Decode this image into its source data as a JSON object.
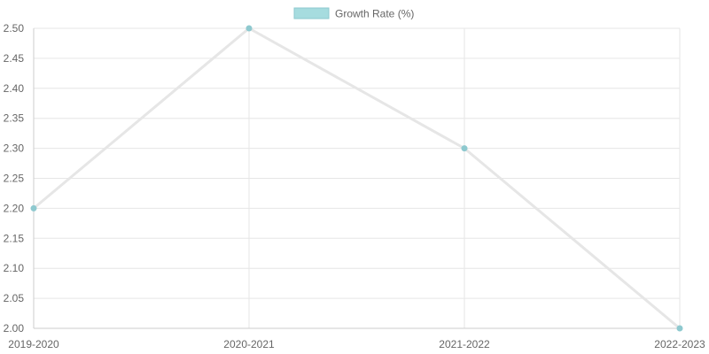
{
  "chart_data": {
    "type": "line",
    "categories": [
      "2019-2020",
      "2020-2021",
      "2021-2022",
      "2022-2023"
    ],
    "series": [
      {
        "name": "Growth Rate (%)",
        "values": [
          2.2,
          2.5,
          2.3,
          2.0
        ]
      }
    ],
    "ylim": [
      2.0,
      2.5
    ],
    "yticks": [
      "2.00",
      "2.05",
      "2.10",
      "2.15",
      "2.20",
      "2.25",
      "2.30",
      "2.35",
      "2.40",
      "2.45",
      "2.50"
    ],
    "grid": true,
    "legend_position": "top-center",
    "colors": {
      "line": "#e6e6e6",
      "point": "#8ec9cf",
      "legend_fill": "#a6dcdf",
      "legend_border": "#8ec9cf",
      "grid": "#e6e6e6",
      "axis": "#cccccc"
    }
  }
}
